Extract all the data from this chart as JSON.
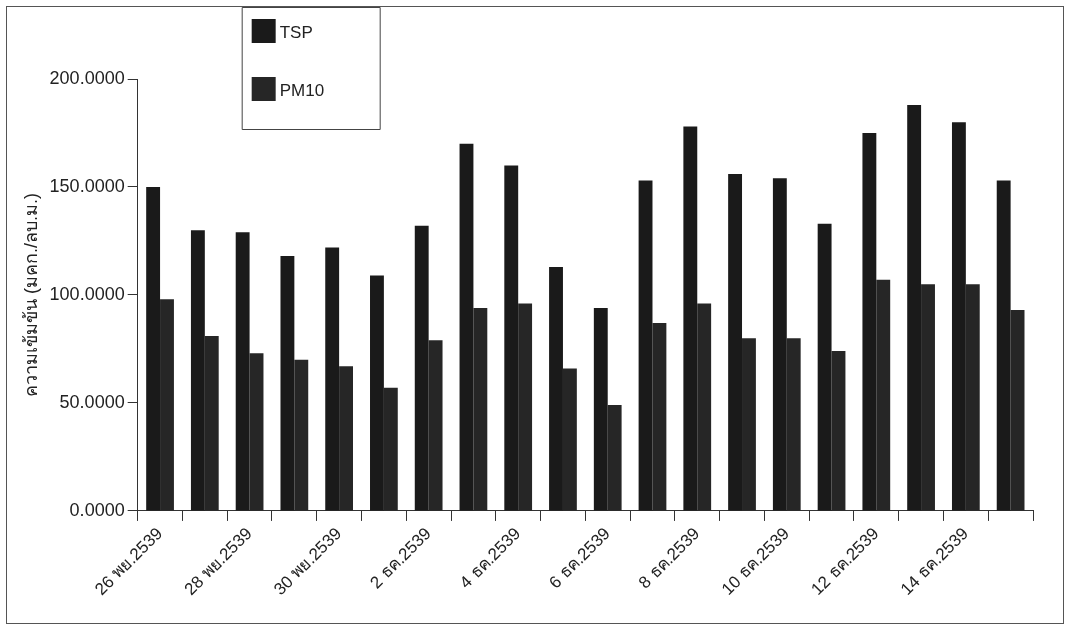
{
  "chart_data": {
    "type": "bar",
    "ylabel": "ความเข้มข้น (มคก./ลบ.ม.)",
    "categories": [
      "26 พย.2539",
      null,
      "28 พย.2539",
      null,
      "30 พย.2539",
      null,
      "2 ธค.2539",
      null,
      "4 ธค.2539",
      null,
      "6 ธค.2539",
      null,
      "8 ธค.2539",
      null,
      "10 ธค.2539",
      null,
      "12 ธค.2539",
      null,
      "14 ธค.2539",
      null
    ],
    "series": [
      {
        "name": "TSP",
        "color": "#1a1a1a",
        "values": [
          150,
          130,
          129,
          118,
          122,
          109,
          132,
          170,
          160,
          113,
          94,
          153,
          178,
          156,
          154,
          133,
          175,
          188,
          180,
          153
        ]
      },
      {
        "name": "PM10",
        "color": "#262626",
        "values": [
          98,
          81,
          73,
          70,
          67,
          57,
          79,
          94,
          96,
          66,
          49,
          87,
          96,
          80,
          80,
          74,
          107,
          105,
          105,
          93
        ]
      }
    ],
    "ylim": [
      0,
      200
    ],
    "yticks": [
      {
        "value": 0,
        "label": "0.0000"
      },
      {
        "value": 50,
        "label": "50.0000"
      },
      {
        "value": 100,
        "label": "100.0000"
      },
      {
        "value": 150,
        "label": "150.0000"
      },
      {
        "value": 200,
        "label": "200.0000"
      }
    ],
    "grid": false,
    "legend": "top left"
  }
}
